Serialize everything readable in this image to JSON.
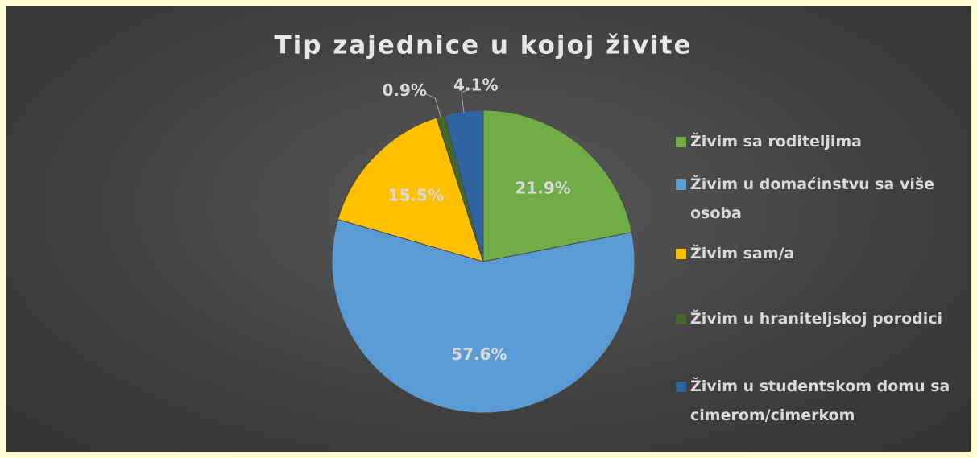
{
  "chart_data": {
    "type": "pie",
    "title": "Tip zajednice u kojoj živite",
    "categories": [
      "Živim sa roditeljima",
      "Živim u domaćinstvu sa više osoba",
      "Živim sam/a",
      "Živim u hraniteljskoj porodici",
      "Živim u studentskom domu sa cimerom/cimerkom"
    ],
    "values": [
      21.9,
      57.6,
      15.5,
      0.9,
      4.1
    ],
    "value_labels": [
      "21.9%",
      "57.6%",
      "15.5%",
      "0.9%",
      "4.1%"
    ],
    "colors": [
      "#70ad47",
      "#5b9bd5",
      "#ffc000",
      "#43682b",
      "#2e64a0"
    ],
    "legend": "right"
  }
}
